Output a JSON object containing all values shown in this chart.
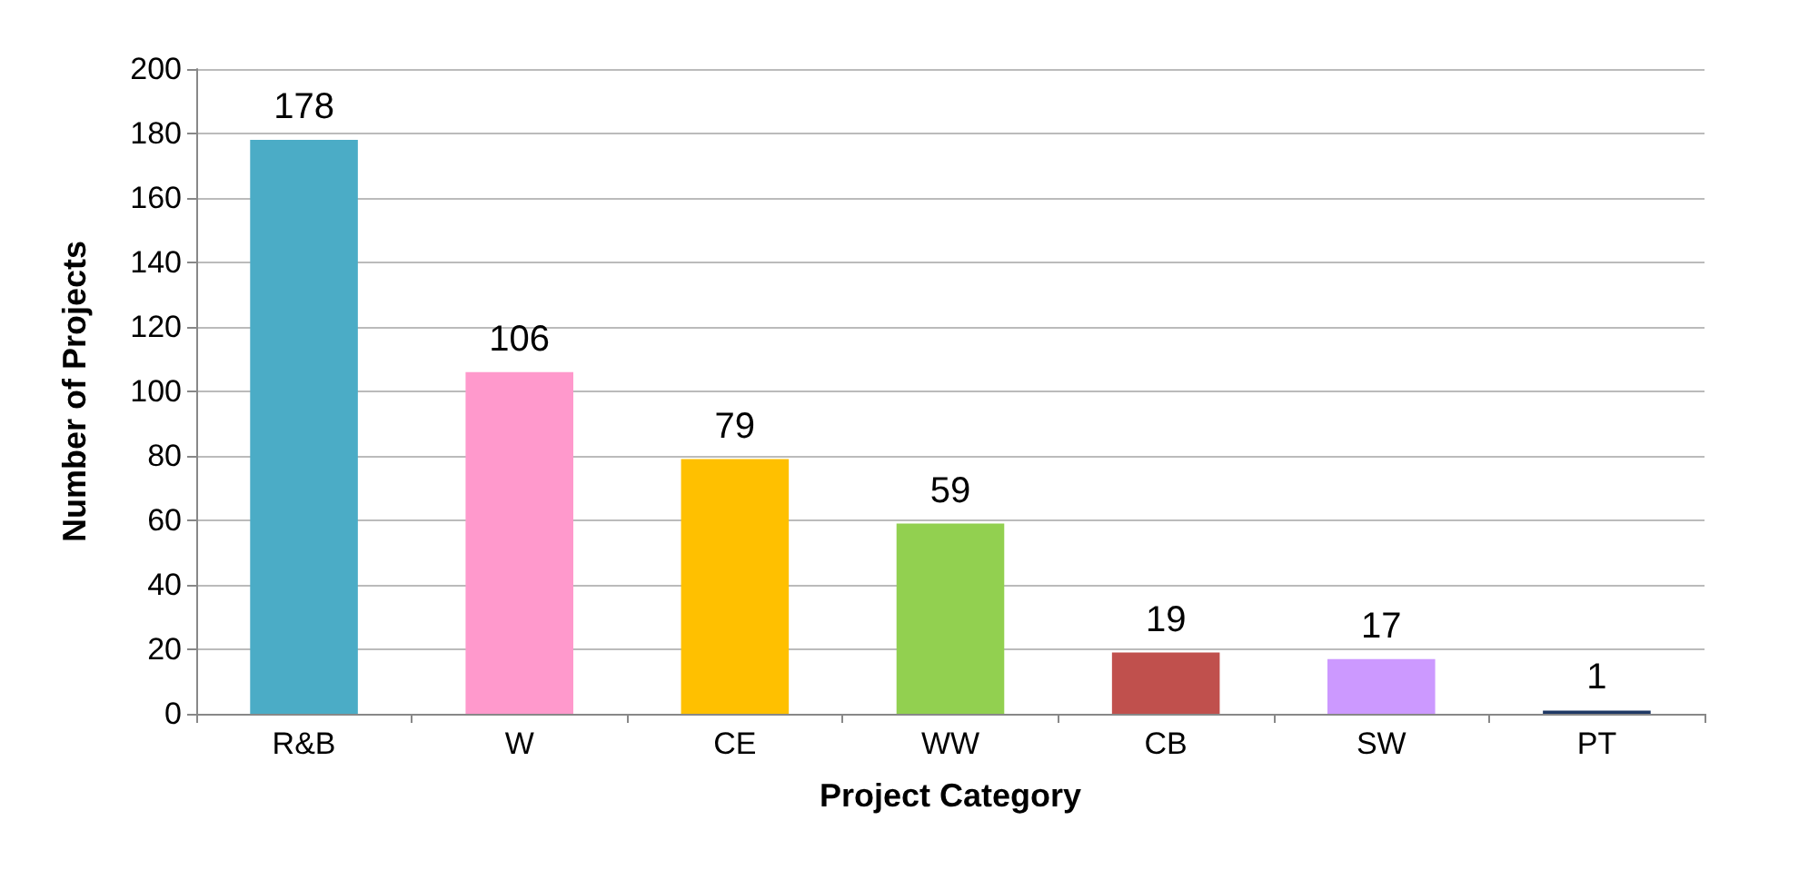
{
  "chart_data": {
    "type": "bar",
    "xlabel": "Project Category",
    "ylabel": "Number of Projects",
    "categories": [
      "R&B",
      "W",
      "CE",
      "WW",
      "CB",
      "SW",
      "PT"
    ],
    "values": [
      178,
      106,
      79,
      59,
      19,
      17,
      1
    ],
    "colors": [
      "#4bacc6",
      "#ff99cc",
      "#ffc000",
      "#92d050",
      "#c0504d",
      "#cc99ff",
      "#1f3864"
    ],
    "ylim": [
      0,
      200
    ],
    "yticks": [
      0,
      20,
      40,
      60,
      80,
      100,
      120,
      140,
      160,
      180,
      200
    ],
    "grid": "y",
    "data_labels": true
  }
}
